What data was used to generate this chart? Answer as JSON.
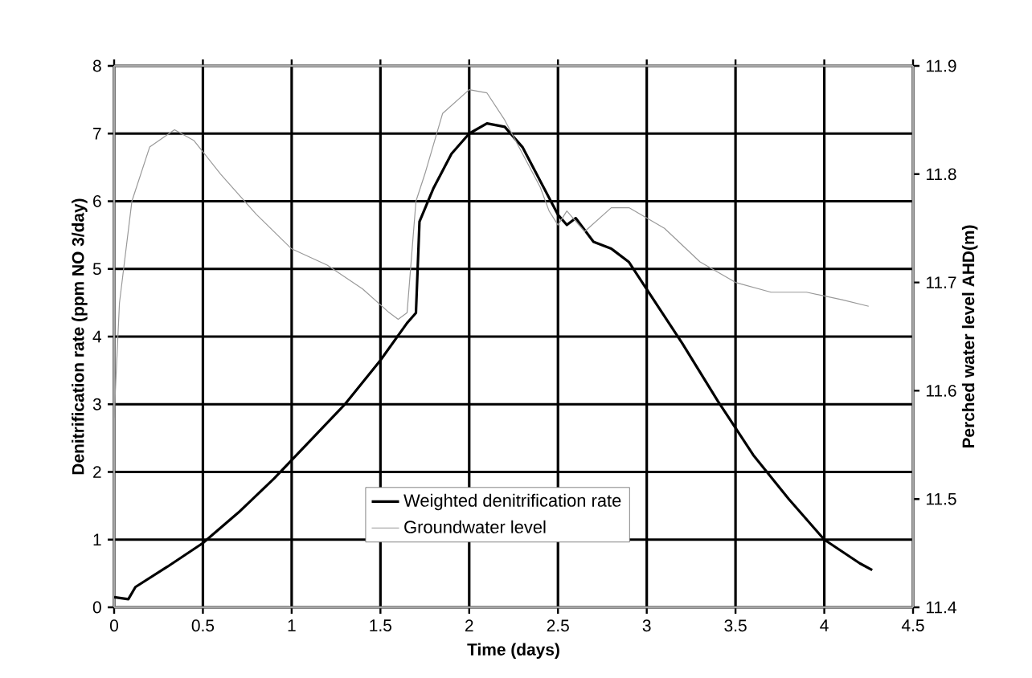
{
  "chart_data": {
    "type": "line",
    "xlabel": "Time (days)",
    "ylabel": "Denitrification rate (ppm NO 3/day)",
    "y2label": "Perched water level AHD(m)",
    "xlim": [
      0,
      4.5
    ],
    "xticks": [
      0,
      0.5,
      1,
      1.5,
      2,
      2.5,
      3,
      3.5,
      4,
      4.5
    ],
    "ylim": [
      0,
      8
    ],
    "yticks": [
      0,
      1,
      2,
      3,
      4,
      5,
      6,
      7,
      8
    ],
    "y2lim": [
      11.4,
      11.9
    ],
    "y2ticks": [
      11.4,
      11.5,
      11.6,
      11.7,
      11.8,
      11.9
    ],
    "grid": true,
    "legend": "bottom",
    "series": [
      {
        "name": "Weighted denitrification rate",
        "color": "#000000",
        "x": [
          0,
          0.08,
          0.12,
          0.3,
          0.5,
          0.7,
          0.9,
          1.1,
          1.3,
          1.5,
          1.65,
          1.7,
          1.72,
          1.8,
          1.9,
          2.0,
          2.1,
          2.2,
          2.3,
          2.4,
          2.45,
          2.5,
          2.55,
          2.6,
          2.7,
          2.8,
          2.9,
          3.0,
          3.2,
          3.4,
          3.6,
          3.8,
          4.0,
          4.2,
          4.27
        ],
        "values": [
          0.15,
          0.12,
          0.3,
          0.6,
          0.95,
          1.4,
          1.9,
          2.45,
          3.0,
          3.65,
          4.2,
          4.35,
          5.7,
          6.2,
          6.7,
          7.0,
          7.15,
          7.1,
          6.8,
          6.3,
          6.05,
          5.8,
          5.65,
          5.75,
          5.4,
          5.3,
          5.1,
          4.7,
          3.9,
          3.05,
          2.25,
          1.6,
          1.0,
          0.65,
          0.55
        ]
      },
      {
        "name": "Groundwater level",
        "color": "#999999",
        "axis": "y2",
        "x": [
          0,
          0.03,
          0.1,
          0.2,
          0.34,
          0.45,
          0.6,
          0.8,
          1.0,
          1.2,
          1.4,
          1.55,
          1.6,
          1.65,
          1.7,
          1.75,
          1.85,
          2.0,
          2.1,
          2.2,
          2.3,
          2.4,
          2.45,
          2.5,
          2.55,
          2.65,
          2.8,
          2.9,
          3.1,
          3.3,
          3.5,
          3.7,
          3.9,
          4.1,
          4.25
        ],
        "values": [
          11.575,
          11.681,
          11.775,
          11.825,
          11.841,
          11.831,
          11.8,
          11.763,
          11.731,
          11.716,
          11.694,
          11.672,
          11.666,
          11.672,
          11.775,
          11.8,
          11.856,
          11.878,
          11.875,
          11.85,
          11.819,
          11.788,
          11.766,
          11.753,
          11.766,
          11.747,
          11.769,
          11.769,
          11.75,
          11.719,
          11.7,
          11.691,
          11.691,
          11.684,
          11.678
        ]
      }
    ]
  }
}
